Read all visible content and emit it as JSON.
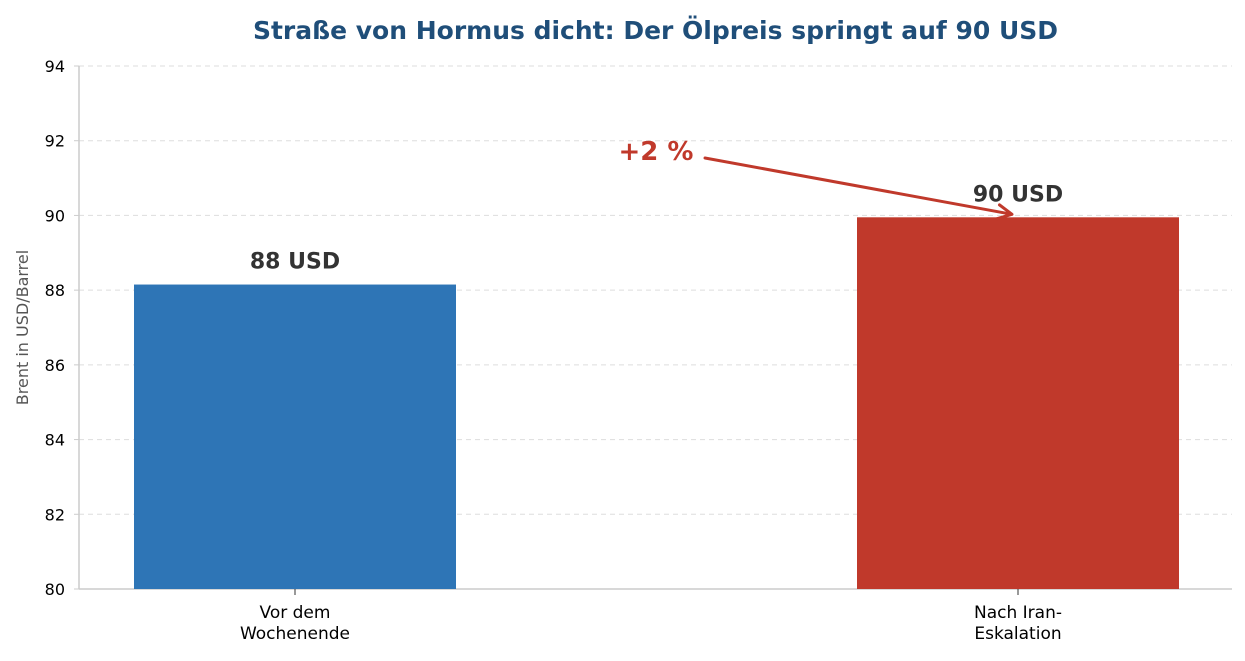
{
  "chart_data": {
    "type": "bar",
    "title": "Straße von Hormus dicht: Der Ölpreis springt auf 90 USD",
    "ylabel": "Brent in USD/Barrel",
    "xlabel": "",
    "ylim": [
      80,
      94
    ],
    "yticks": [
      80,
      82,
      84,
      86,
      88,
      90,
      92,
      94
    ],
    "grid": "horizontal dashed",
    "categories": [
      [
        "Vor dem",
        "Wochenende"
      ],
      [
        "Nach Iran-",
        "Eskalation"
      ]
    ],
    "values": [
      88.15,
      89.95
    ],
    "value_labels": [
      "88 USD",
      "90 USD"
    ],
    "colors": [
      "#2e75b6",
      "#c0392b"
    ],
    "annotation": {
      "text": "+2 %",
      "color": "#c0392b",
      "points_to_category": 1
    }
  },
  "colors": {
    "title": "#1f4e79",
    "value_label": "#333333",
    "axis": "#cccccc",
    "grid": "#dddddd"
  }
}
